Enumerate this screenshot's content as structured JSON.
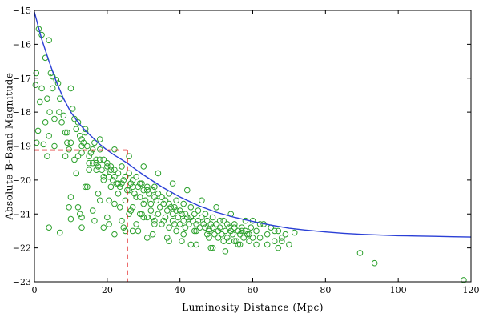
{
  "chart_data": {
    "type": "scatter",
    "xlabel": "Luminosity Distance (Mpc)",
    "ylabel": "Absolute B-Band Magnitude",
    "xlim": [
      0,
      120
    ],
    "ylim": [
      -23,
      -15
    ],
    "y_reversed": true,
    "x_ticks": [
      0,
      20,
      40,
      60,
      80,
      100,
      120
    ],
    "y_ticks": [
      -15,
      -16,
      -17,
      -18,
      -19,
      -20,
      -21,
      -22,
      -23
    ],
    "grid": false,
    "legend": "none",
    "colors": {
      "points": "#2ca02c",
      "curve": "#2a3fd6",
      "dashed": "#e01010",
      "axes": "#000000"
    },
    "curve": {
      "name": "",
      "x": [
        0,
        2,
        4,
        6,
        8,
        10,
        12,
        14,
        16,
        18,
        20,
        22,
        24,
        25.5,
        28,
        30,
        35,
        40,
        45,
        50,
        55,
        60,
        65,
        70,
        75,
        80,
        85,
        90,
        95,
        100,
        105,
        110,
        115,
        120
      ],
      "y": [
        -15.05,
        -15.85,
        -16.5,
        -17.1,
        -17.6,
        -18.0,
        -18.3,
        -18.55,
        -18.75,
        -18.95,
        -19.12,
        -19.27,
        -19.4,
        -19.5,
        -19.7,
        -19.85,
        -20.2,
        -20.5,
        -20.75,
        -20.95,
        -21.1,
        -21.22,
        -21.33,
        -21.42,
        -21.48,
        -21.53,
        -21.57,
        -21.6,
        -21.62,
        -21.64,
        -21.65,
        -21.66,
        -21.67,
        -21.68
      ]
    },
    "reference_lines": [
      {
        "x": [
          0,
          25.5
        ],
        "y": [
          -19.12,
          -19.12
        ]
      },
      {
        "x": [
          25.5,
          25.5
        ],
        "y": [
          -19.12,
          -23
        ]
      }
    ],
    "points": {
      "x": [
        0.5,
        1.2,
        2.0,
        3.0,
        4.0,
        4.5,
        5.0,
        0.3,
        1.5,
        2.0,
        3.5,
        4.2,
        5.0,
        6.0,
        6.5,
        7.0,
        1.0,
        3.0,
        4.0,
        5.5,
        0.6,
        2.5,
        3.5,
        5.5,
        6.8,
        7.5,
        8.5,
        9.0,
        9.5,
        10.0,
        10.5,
        11.0,
        11.5,
        12.0,
        12.5,
        13.0,
        13.5,
        14.0,
        14.5,
        15.0,
        15.5,
        16.0,
        16.5,
        17.0,
        17.5,
        18.0,
        18.5,
        19.0,
        19.5,
        20.0,
        20.5,
        21.0,
        21.5,
        22.0,
        22.5,
        23.0,
        23.5,
        24.0,
        24.5,
        25.0,
        25.5,
        26.0,
        26.5,
        27.0,
        27.5,
        28.0,
        28.5,
        29.0,
        29.5,
        30.0,
        30.5,
        31.0,
        31.5,
        32.0,
        32.5,
        33.0,
        33.5,
        34.0,
        34.5,
        35.0,
        35.5,
        36.0,
        36.5,
        37.0,
        37.5,
        38.0,
        38.5,
        39.0,
        39.5,
        40.0,
        40.5,
        41.0,
        41.5,
        42.0,
        42.5,
        43.0,
        43.5,
        44.0,
        44.5,
        45.0,
        45.5,
        46.0,
        46.5,
        47.0,
        47.5,
        48.0,
        48.5,
        49.0,
        49.5,
        50.0,
        50.5,
        51.0,
        51.5,
        52.0,
        52.5,
        53.0,
        53.5,
        54.0,
        54.5,
        55.0,
        55.5,
        56.0,
        56.5,
        57.0,
        57.5,
        58.0,
        58.5,
        59.0,
        59.5,
        60.0,
        61.0,
        62.0,
        63.0,
        64.0,
        65.0,
        66.0,
        67.0,
        68.0,
        69.0,
        70.0,
        71.5,
        10.0,
        12.0,
        14.0,
        16.0,
        18.0,
        20.0,
        22.0,
        24.0,
        26.0,
        28.0,
        30.0,
        11.0,
        13.0,
        15.0,
        17.0,
        19.0,
        21.0,
        23.0,
        25.0,
        27.0,
        29.0,
        31.0,
        33.0,
        35.0,
        37.0,
        39.0,
        41.0,
        43.0,
        45.0,
        47.0,
        49.0,
        51.0,
        53.0,
        55.0,
        57.0,
        59.0,
        14.0,
        18.0,
        22.0,
        26.0,
        30.0,
        34.0,
        38.0,
        42.0,
        46.0,
        50.0,
        54.0,
        58.0,
        62.0,
        66.0,
        8.0,
        9.0,
        10.0,
        12.0,
        13.0,
        15.0,
        16.0,
        17.0,
        18.0,
        19.0,
        20.0,
        21.0,
        22.0,
        23.0,
        24.0,
        25.0,
        26.0,
        27.0,
        28.0,
        29.0,
        30.0,
        31.0,
        32.0,
        33.0,
        34.0,
        35.0,
        36.0,
        37.0,
        38.0,
        39.0,
        40.0,
        41.0,
        44.0,
        48.0,
        52.0,
        56.0,
        60.0,
        64.0,
        68.0,
        8.5,
        11.5,
        14.5,
        17.5,
        20.5,
        23.5,
        26.5,
        29.5,
        32.5,
        35.5,
        38.5,
        41.5,
        44.5,
        47.5,
        50.5,
        53.5,
        56.5,
        12.5,
        16.5,
        20.5,
        24.5,
        28.5,
        32.5,
        36.5,
        40.5,
        44.5,
        48.5,
        52.5,
        9.5,
        13.0,
        19.0,
        25.0,
        31.0,
        37.0,
        43.0,
        49.0,
        55.0,
        61.0,
        67.0,
        4.0,
        7.0,
        10.0,
        13.0,
        22.0,
        27.0,
        33.0,
        48.0,
        89.5,
        93.5,
        118.0
      ],
      "y": [
        -16.85,
        -15.55,
        -15.72,
        -16.4,
        -15.88,
        -16.85,
        -16.95,
        -17.2,
        -17.7,
        -17.3,
        -17.6,
        -18.0,
        -17.3,
        -17.05,
        -17.15,
        -17.6,
        -18.55,
        -18.3,
        -18.7,
        -18.2,
        -18.9,
        -18.95,
        -19.3,
        -19.0,
        -18.0,
        -18.3,
        -18.6,
        -18.9,
        -19.1,
        -17.3,
        -17.9,
        -18.2,
        -18.5,
        -18.3,
        -18.7,
        -18.8,
        -18.9,
        -18.6,
        -19.0,
        -19.3,
        -19.2,
        -19.5,
        -18.9,
        -19.4,
        -19.6,
        -19.1,
        -19.7,
        -19.4,
        -19.8,
        -19.5,
        -19.9,
        -19.6,
        -20.0,
        -19.7,
        -20.1,
        -19.8,
        -20.2,
        -19.6,
        -20.0,
        -19.9,
        -20.3,
        -19.8,
        -20.1,
        -20.0,
        -20.4,
        -19.9,
        -20.2,
        -20.5,
        -20.1,
        -20.3,
        -20.6,
        -20.2,
        -20.4,
        -20.7,
        -20.3,
        -20.5,
        -20.6,
        -20.4,
        -20.8,
        -20.5,
        -20.7,
        -20.6,
        -20.9,
        -20.7,
        -20.8,
        -21.0,
        -20.8,
        -20.9,
        -21.1,
        -20.9,
        -21.0,
        -21.2,
        -21.0,
        -21.1,
        -21.3,
        -21.1,
        -21.2,
        -21.0,
        -21.3,
        -21.2,
        -21.4,
        -21.1,
        -21.3,
        -21.4,
        -21.2,
        -21.5,
        -21.3,
        -21.4,
        -21.6,
        -21.3,
        -21.5,
        -21.4,
        -21.6,
        -21.2,
        -21.5,
        -21.7,
        -21.4,
        -21.5,
        -21.6,
        -21.3,
        -21.8,
        -21.5,
        -21.6,
        -21.4,
        -21.7,
        -21.5,
        -21.6,
        -21.8,
        -21.4,
        -21.2,
        -21.5,
        -21.7,
        -21.3,
        -21.6,
        -21.4,
        -21.8,
        -21.5,
        -21.7,
        -21.6,
        -21.9,
        -21.55,
        -20.5,
        -20.8,
        -20.2,
        -20.9,
        -20.6,
        -21.1,
        -20.7,
        -21.2,
        -21.0,
        -21.3,
        -21.1,
        -19.4,
        -19.2,
        -19.7,
        -19.5,
        -19.9,
        -19.7,
        -20.1,
        -19.9,
        -20.2,
        -20.1,
        -20.3,
        -20.2,
        -20.5,
        -20.4,
        -20.6,
        -20.7,
        -20.8,
        -20.9,
        -21.0,
        -21.1,
        -21.2,
        -21.3,
        -21.4,
        -21.5,
        -21.6,
        -18.5,
        -18.8,
        -19.1,
        -19.3,
        -19.6,
        -19.8,
        -20.1,
        -20.3,
        -20.6,
        -20.8,
        -21.0,
        -21.2,
        -21.3,
        -21.5,
        -18.1,
        -18.6,
        -18.9,
        -19.3,
        -19.0,
        -19.5,
        -19.1,
        -19.7,
        -19.4,
        -20.0,
        -19.6,
        -20.2,
        -19.9,
        -20.4,
        -20.1,
        -20.6,
        -20.3,
        -20.8,
        -20.5,
        -21.0,
        -20.7,
        -21.1,
        -20.9,
        -21.2,
        -21.0,
        -21.3,
        -21.1,
        -21.4,
        -21.2,
        -21.5,
        -21.3,
        -21.6,
        -21.5,
        -21.7,
        -21.8,
        -21.9,
        -21.7,
        -21.9,
        -21.8,
        -19.3,
        -19.8,
        -20.2,
        -20.4,
        -20.6,
        -20.8,
        -20.9,
        -21.0,
        -21.1,
        -21.2,
        -21.3,
        -21.4,
        -21.5,
        -21.6,
        -21.7,
        -21.8,
        -21.9,
        -21.0,
        -21.2,
        -21.3,
        -21.4,
        -21.5,
        -21.6,
        -21.7,
        -21.8,
        -21.9,
        -22.0,
        -22.1,
        -20.8,
        -21.1,
        -21.4,
        -21.5,
        -21.7,
        -21.8,
        -21.9,
        -22.0,
        -21.8,
        -21.9,
        -22.0,
        -21.4,
        -21.55,
        -21.15,
        -21.4,
        -21.6,
        -21.5,
        -21.3,
        -21.45,
        -22.15,
        -22.45,
        -22.95
      ]
    }
  }
}
